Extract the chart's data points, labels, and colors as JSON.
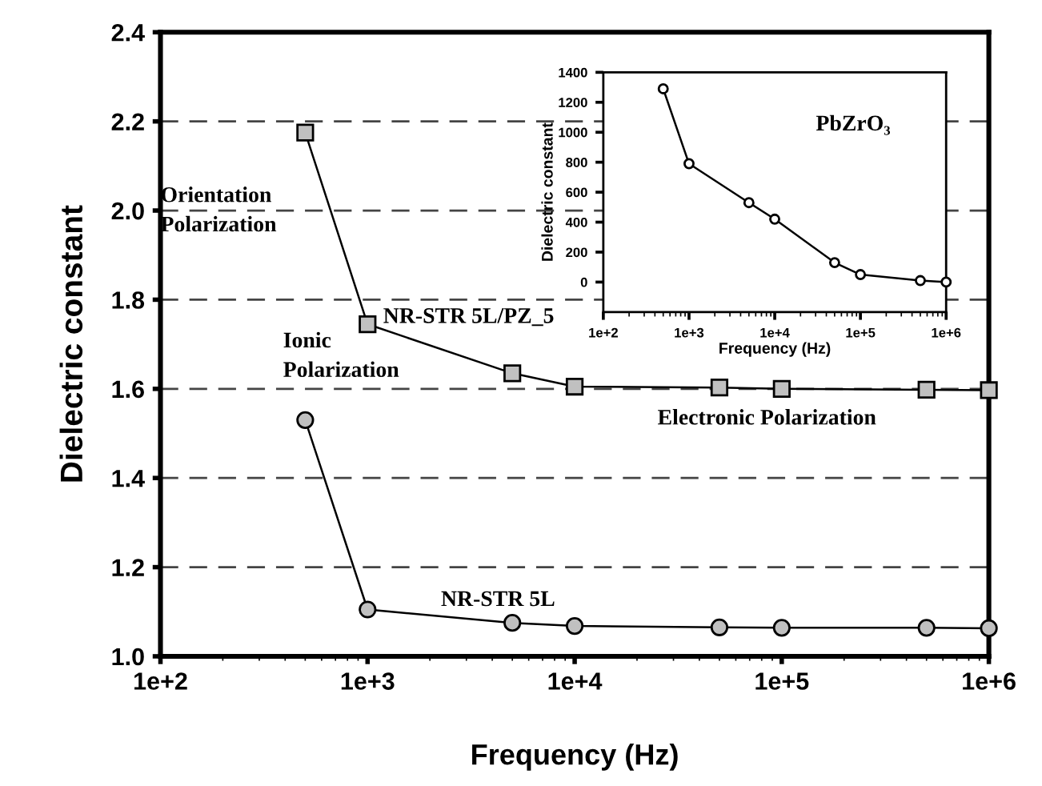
{
  "chart_data": [
    {
      "type": "line",
      "xlabel": "Frequency (Hz)",
      "ylabel": "Dielectric constant",
      "log": "x",
      "grid": "y",
      "line_style": "solid",
      "x": [
        500,
        1000,
        5000,
        10000,
        50000,
        100000,
        500000,
        1000000
      ],
      "series": [
        {
          "name": "NR-STR 5L/PZ_5",
          "color": "#c0c0c0",
          "marker": "square",
          "values": [
            2.175,
            1.745,
            1.635,
            1.605,
            1.603,
            1.6,
            1.598,
            1.597
          ]
        },
        {
          "name": "NR-STR 5L",
          "color": "#c0c0c0",
          "marker": "circle",
          "values": [
            1.53,
            1.105,
            1.075,
            1.068,
            1.065,
            1.064,
            1.064,
            1.063
          ]
        }
      ],
      "xlim": [
        100,
        1000000
      ],
      "ylim": [
        1.0,
        2.4
      ],
      "xticks": [
        {
          "value": 100,
          "label": "1e+2"
        },
        {
          "value": 1000,
          "label": "1e+3"
        },
        {
          "value": 10000,
          "label": "1e+4"
        },
        {
          "value": 100000,
          "label": "1e+5"
        },
        {
          "value": 1000000,
          "label": "1e+6"
        }
      ],
      "yticks": [
        {
          "value": 1.0,
          "label": "1.0"
        },
        1.2,
        1.4,
        1.6,
        1.8,
        {
          "value": 2.0,
          "label": "2.0"
        },
        2.2,
        2.4
      ],
      "annotations": [
        "Orientation\nPolarization",
        "Ionic\nPolarization",
        "Electronic Polarization"
      ]
    },
    {
      "type": "line",
      "xlabel": "Frequency (Hz)",
      "ylabel": "Dielectric constant",
      "log": "x",
      "line_style": "solid",
      "marker": "circle",
      "x": [
        500,
        1000,
        5000,
        10000,
        50000,
        100000,
        500000,
        1000000
      ],
      "series": [
        {
          "color": "#ffffff",
          "values": [
            1290,
            790,
            530,
            420,
            130,
            50,
            10,
            0
          ]
        }
      ],
      "xlim": [
        100,
        1000000
      ],
      "ylim": [
        -200,
        1400
      ],
      "xticks": [
        {
          "value": 100,
          "label": "1e+2"
        },
        {
          "value": 1000,
          "label": "1e+3"
        },
        {
          "value": 10000,
          "label": "1e+4"
        },
        {
          "value": 100000,
          "label": "1e+5"
        },
        {
          "value": 1000000,
          "label": "1e+6"
        }
      ],
      "yticks": [
        0,
        200,
        400,
        600,
        800,
        1000,
        1200,
        1400
      ],
      "annotations": [
        "PbZrO₃"
      ]
    }
  ]
}
